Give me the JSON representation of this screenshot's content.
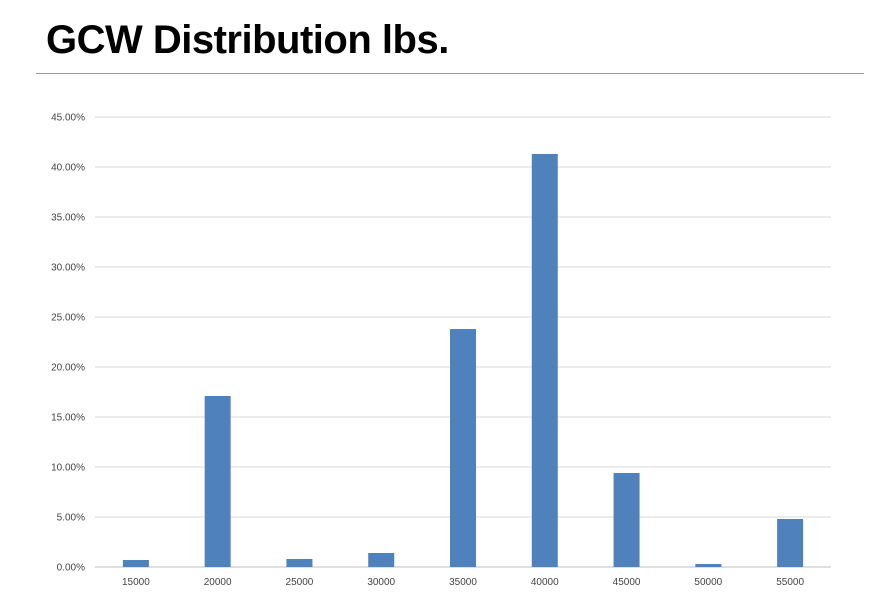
{
  "slide": {
    "title": "GCW Distribution lbs."
  },
  "colors": {
    "bar": "#4f81bd",
    "grid": "#d9d9d9",
    "axis": "#bfbfbf"
  },
  "chart_data": {
    "type": "bar",
    "categories": [
      "15000",
      "20000",
      "25000",
      "30000",
      "35000",
      "40000",
      "45000",
      "50000",
      "55000"
    ],
    "values": [
      0.7,
      17.1,
      0.8,
      1.4,
      23.8,
      41.3,
      9.4,
      0.3,
      4.8
    ],
    "unit": "%",
    "ylim": [
      0,
      45
    ],
    "yticks": [
      0,
      5,
      10,
      15,
      20,
      25,
      30,
      35,
      40,
      45
    ],
    "ytick_labels": [
      "0.00%",
      "5.00%",
      "10.00%",
      "15.00%",
      "20.00%",
      "25.00%",
      "30.00%",
      "35.00%",
      "40.00%",
      "45.00%"
    ],
    "grid": true,
    "legend": "none"
  }
}
